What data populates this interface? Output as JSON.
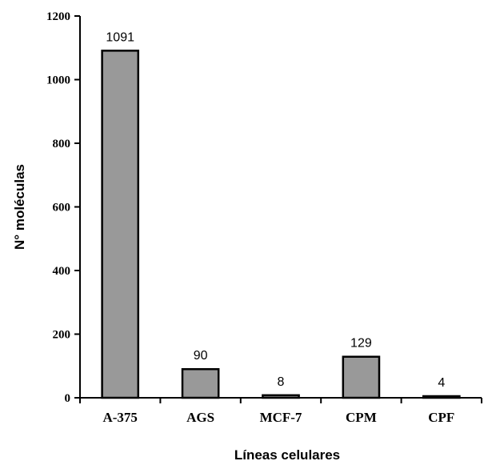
{
  "chart_data": {
    "type": "bar",
    "title": "",
    "xlabel": "Líneas  celulares",
    "ylabel": "N° moléculas",
    "categories": [
      "A-375",
      "AGS",
      "MCF-7",
      "CPM",
      "CPF"
    ],
    "values": [
      1091,
      90,
      8,
      129,
      4
    ],
    "data_labels": [
      "1091",
      "90",
      "8",
      "129",
      "4"
    ],
    "ylim": [
      0,
      1200
    ],
    "yticks": [
      0,
      200,
      400,
      600,
      800,
      1000,
      1200
    ],
    "grid": false,
    "legend": "none",
    "bar_color": "#999999"
  }
}
